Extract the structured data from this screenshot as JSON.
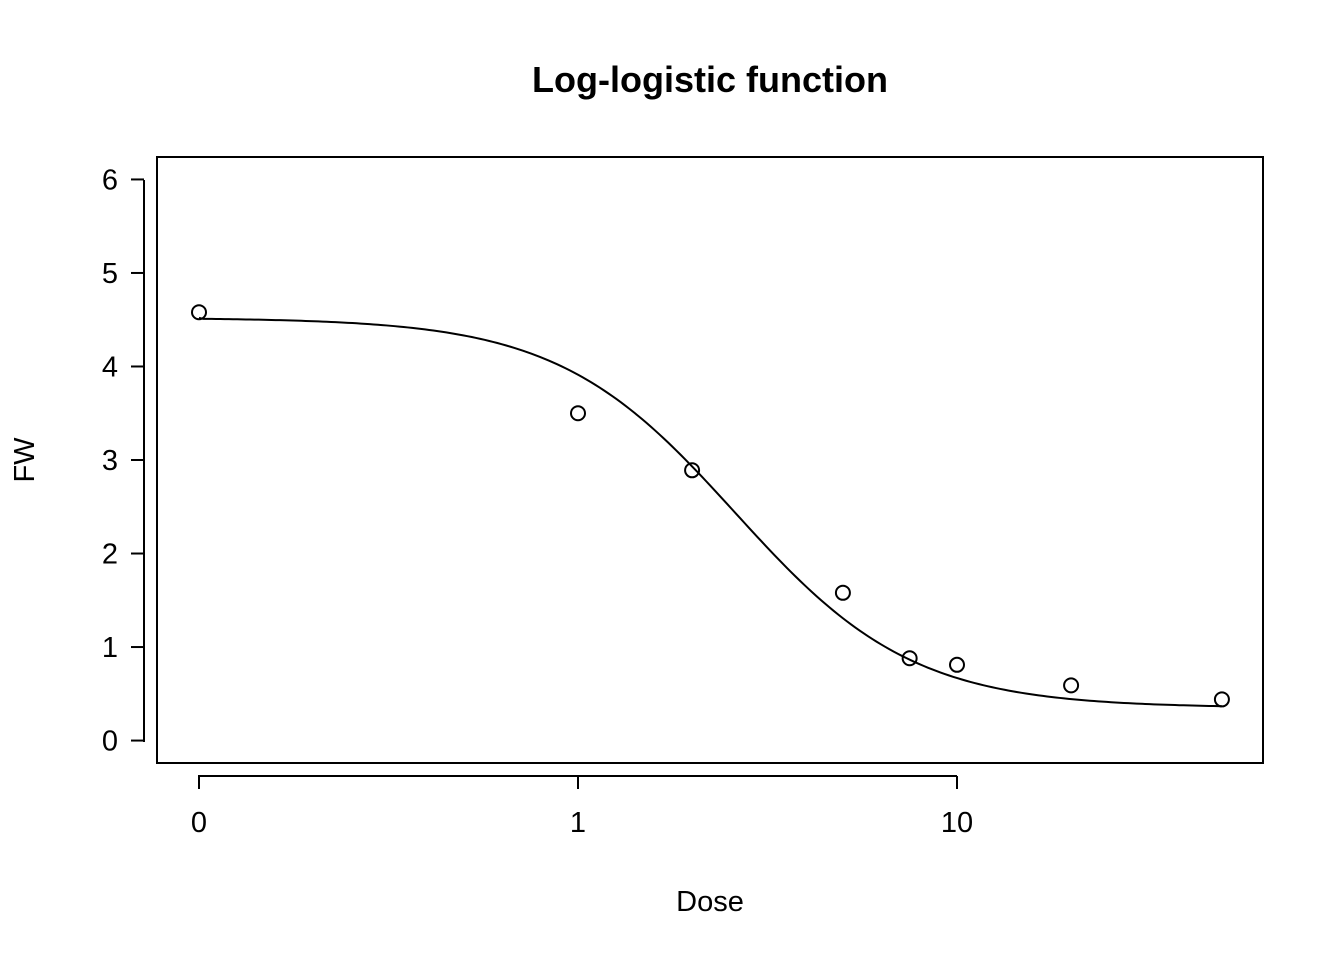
{
  "chart_data": {
    "type": "scatter",
    "title": "Log-logistic function",
    "xlabel": "Dose",
    "ylabel": "FW",
    "x_scale": "log",
    "x_ticks": [
      {
        "value": 0,
        "label": "0"
      },
      {
        "value": 1,
        "label": "1"
      },
      {
        "value": 10,
        "label": "10"
      }
    ],
    "y_ticks": [
      0,
      1,
      2,
      3,
      4,
      5,
      6
    ],
    "ylim": [
      -0.24,
      6.24
    ],
    "grid": false,
    "legend": "none",
    "points": {
      "x": [
        0,
        1,
        2,
        5,
        7.5,
        10,
        20,
        50
      ],
      "y": [
        4.58,
        3.5,
        2.89,
        1.58,
        0.88,
        0.81,
        0.59,
        0.44
      ]
    },
    "fitted_curve": {
      "model": "log-logistic (4-parameter)",
      "lower": 0.35,
      "upper": 4.52,
      "ed50": 2.6,
      "slope": 1.85
    }
  }
}
